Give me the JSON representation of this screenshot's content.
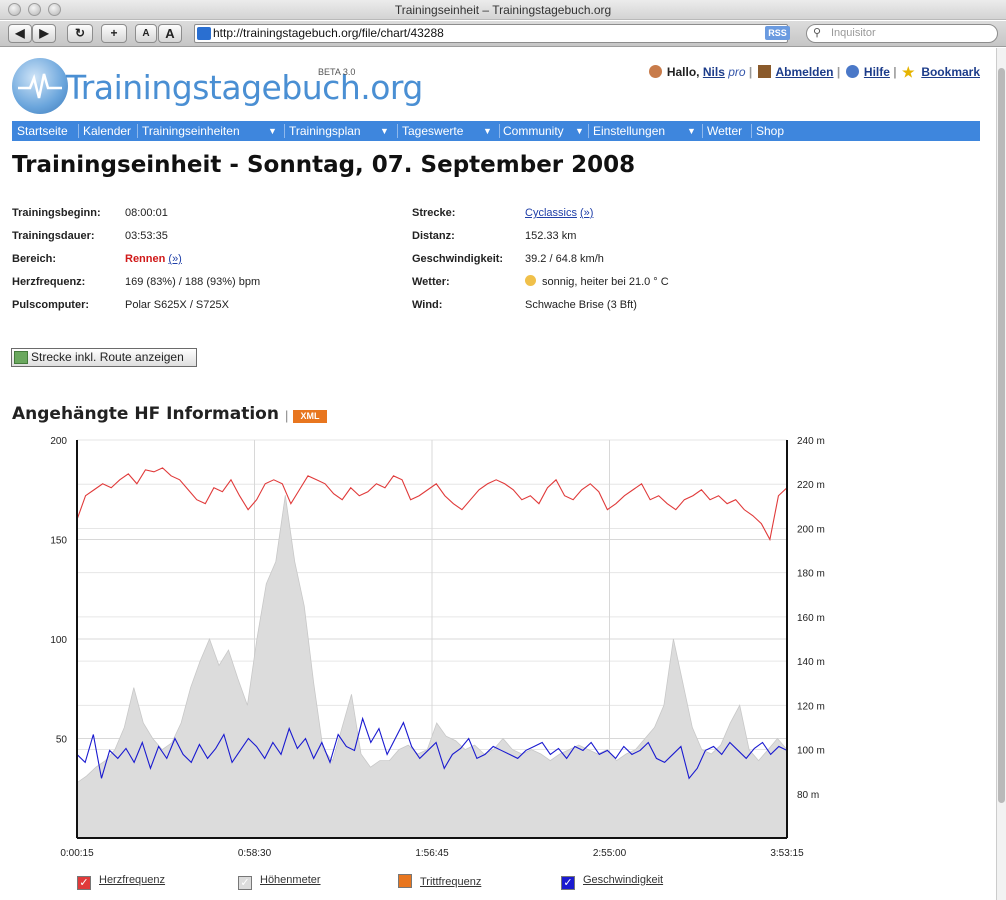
{
  "window": {
    "title": "Trainingseinheit – Trainingstagebuch.org"
  },
  "browser": {
    "url": "http://trainingstagebuch.org/file/chart/43288",
    "rss_label": "RSS",
    "search_placeholder": "Inquisitor"
  },
  "logo": {
    "text": "Trainingstagebuch.org",
    "badge": "BETA 3.0"
  },
  "user": {
    "greeting": "Hallo,",
    "name": "Nils",
    "pro": "pro",
    "logout": "Abmelden",
    "help": "Hilfe",
    "bookmark": "Bookmark"
  },
  "nav": [
    {
      "label": "Startseite"
    },
    {
      "label": "Kalender"
    },
    {
      "label": "Trainingseinheiten"
    },
    {
      "label": "Trainingsplan"
    },
    {
      "label": "Tageswerte"
    },
    {
      "label": "Community"
    },
    {
      "label": "Einstellungen"
    },
    {
      "label": "Wetter"
    },
    {
      "label": "Shop"
    }
  ],
  "page": {
    "title": "Trainingseinheit - Sonntag, 07. September 2008"
  },
  "info_left": [
    {
      "label": "Trainingsbeginn:",
      "value": "08:00:01"
    },
    {
      "label": "Trainingsdauer:",
      "value": "03:53:35"
    },
    {
      "label": "Bereich:",
      "value": "Rennen",
      "link": "(»)"
    },
    {
      "label": "Herzfrequenz:",
      "value": "169 (83%) / 188 (93%) bpm"
    },
    {
      "label": "Pulscomputer:",
      "value": "Polar S625X / S725X"
    }
  ],
  "info_right": [
    {
      "label": "Strecke:",
      "value": "Cyclassics",
      "link": "(»)"
    },
    {
      "label": "Distanz:",
      "value": "152.33 km"
    },
    {
      "label": "Geschwindigkeit:",
      "value": "39.2 / 64.8 km/h"
    },
    {
      "label": "Wetter:",
      "value": "sonnig, heiter bei 21.0 ° C"
    },
    {
      "label": "Wind:",
      "value": "Schwache Brise (3 Bft)"
    }
  ],
  "route_button": "Strecke inkl. Route anzeigen",
  "section": {
    "title": "Angehängte HF Information",
    "xml_badge": "XML"
  },
  "colors": {
    "heart_rate": "#e03a3a",
    "elevation": "#dcdcdc",
    "cadence": "#e8761f",
    "speed": "#1a1ad0",
    "nav": "#3e86dd"
  },
  "chart_data": {
    "type": "line",
    "x_ticks": [
      "0:00:15",
      "0:58:30",
      "1:56:45",
      "2:55:00",
      "3:53:15"
    ],
    "y_left": {
      "ticks": [
        50,
        100,
        150,
        200
      ],
      "range": [
        0,
        200
      ]
    },
    "y_right": {
      "ticks": [
        "80 m",
        "100 m",
        "120 m",
        "140 m",
        "160 m",
        "180 m",
        "200 m",
        "220 m",
        "240 m"
      ],
      "range": [
        60,
        240
      ]
    },
    "grid": true,
    "series": [
      {
        "name": "Herzfrequenz",
        "axis": "left",
        "checked": true,
        "color": "#e03a3a",
        "values": [
          160,
          172,
          175,
          178,
          176,
          180,
          183,
          178,
          185,
          184,
          186,
          182,
          180,
          175,
          170,
          168,
          176,
          174,
          180,
          172,
          165,
          170,
          178,
          180,
          178,
          168,
          175,
          182,
          180,
          178,
          173,
          170,
          176,
          172,
          174,
          178,
          176,
          182,
          180,
          170,
          172,
          175,
          178,
          172,
          168,
          165,
          170,
          175,
          178,
          180,
          178,
          175,
          170,
          172,
          168,
          176,
          180,
          172,
          170,
          175,
          178,
          174,
          165,
          168,
          172,
          175,
          178,
          170,
          172,
          168,
          165,
          170,
          172,
          175,
          170,
          172,
          168,
          170,
          165,
          162,
          158,
          150,
          172,
          176
        ]
      },
      {
        "name": "Höhenmeter",
        "axis": "right",
        "checked": true,
        "color": "#dcdcdc",
        "values": [
          85,
          88,
          92,
          95,
          100,
          110,
          128,
          112,
          105,
          100,
          103,
          112,
          128,
          140,
          150,
          138,
          145,
          132,
          120,
          150,
          175,
          185,
          215,
          185,
          165,
          130,
          100,
          95,
          110,
          125,
          98,
          92,
          95,
          95,
          100,
          102,
          98,
          100,
          112,
          106,
          104,
          100,
          102,
          98,
          100,
          105,
          100,
          98,
          100,
          98,
          95,
          98,
          100,
          102,
          100,
          98,
          100,
          95,
          98,
          100,
          105,
          110,
          120,
          150,
          130,
          110,
          100,
          98,
          102,
          112,
          120,
          100,
          95,
          100,
          105,
          100
        ]
      },
      {
        "name": "Trittfrequenz",
        "axis": "left",
        "checked": false,
        "color": "#e8761f",
        "values": []
      },
      {
        "name": "Geschwindigkeit",
        "axis": "left",
        "checked": true,
        "color": "#1a1ad0",
        "values": [
          42,
          38,
          52,
          30,
          44,
          40,
          45,
          38,
          48,
          35,
          46,
          40,
          50,
          42,
          38,
          47,
          40,
          45,
          52,
          38,
          44,
          50,
          46,
          40,
          48,
          42,
          55,
          45,
          50,
          40,
          48,
          38,
          52,
          46,
          44,
          60,
          48,
          55,
          42,
          50,
          58,
          46,
          40,
          44,
          48,
          35,
          42,
          45,
          50,
          40,
          42,
          46,
          44,
          42,
          40,
          44,
          46,
          48,
          42,
          45,
          40,
          46,
          44,
          48,
          42,
          44,
          40,
          46,
          42,
          44,
          48,
          40,
          38,
          42,
          46,
          30,
          35,
          44,
          46,
          42,
          48,
          44,
          40,
          45,
          48,
          42,
          46,
          44
        ]
      }
    ]
  }
}
